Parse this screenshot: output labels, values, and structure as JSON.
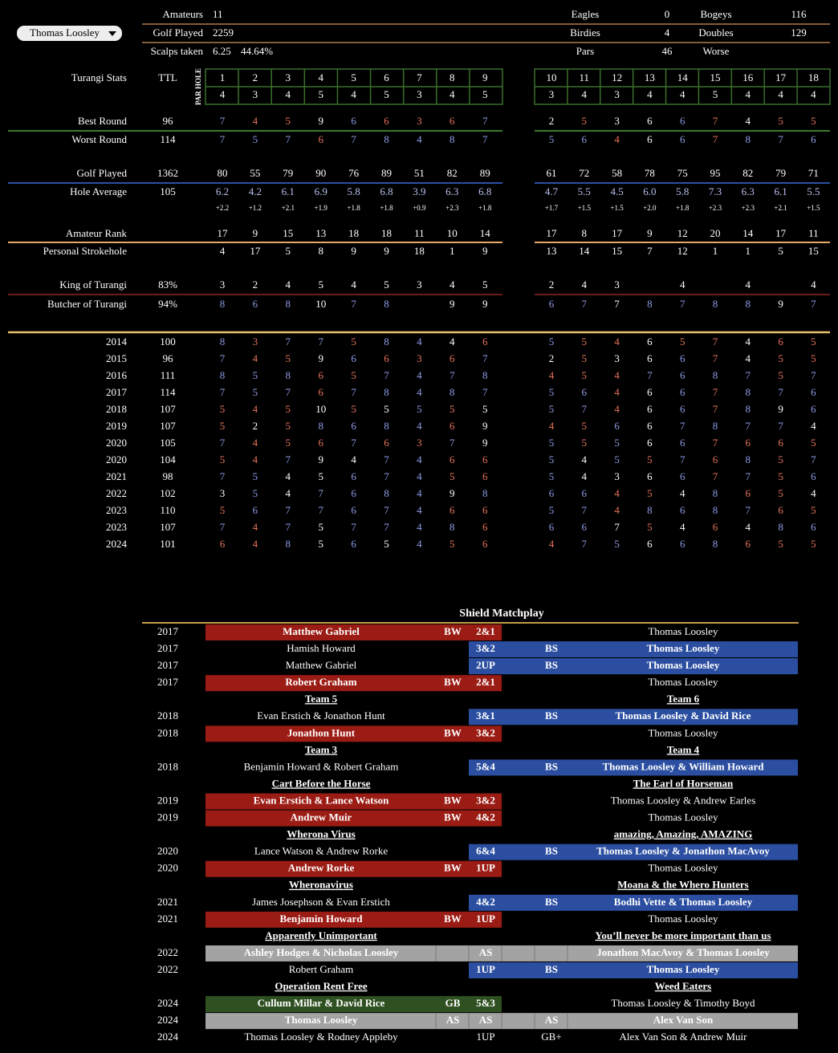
{
  "player": "Thomas Loosley",
  "summary": {
    "left": [
      {
        "label": "Amateurs",
        "values": [
          "11"
        ]
      },
      {
        "label": "Golf Played",
        "values": [
          "2259"
        ]
      },
      {
        "label": "Scalps taken",
        "values": [
          "6.25",
          "44.64%"
        ]
      }
    ],
    "right": [
      [
        "Eagles",
        "0"
      ],
      [
        "Birdies",
        "4"
      ],
      [
        "Pars",
        "46"
      ],
      [
        "Bogeys",
        "116"
      ],
      [
        "Doubles",
        "129"
      ],
      [
        "Worse"
      ]
    ]
  },
  "stats": {
    "title": "Turangi Stats",
    "total_header": "TTL",
    "par_hole_label": "PAR HOLE",
    "holes": [
      1,
      2,
      3,
      4,
      5,
      6,
      7,
      8,
      9,
      10,
      11,
      12,
      13,
      14,
      15,
      16,
      17,
      18
    ],
    "par": [
      4,
      3,
      4,
      5,
      4,
      5,
      3,
      4,
      5,
      3,
      4,
      3,
      4,
      4,
      5,
      4,
      4,
      4
    ],
    "rows": [
      {
        "label": "Best Round",
        "total": 96,
        "values": [
          7,
          4,
          5,
          9,
          6,
          6,
          3,
          6,
          7,
          2,
          5,
          3,
          6,
          6,
          7,
          4,
          5,
          5
        ]
      },
      {
        "label": "Worst Round",
        "total": 114,
        "values": [
          7,
          5,
          7,
          6,
          7,
          8,
          4,
          8,
          7,
          5,
          6,
          4,
          6,
          6,
          7,
          8,
          7,
          6
        ]
      },
      {
        "label": "Golf Played",
        "total": 1362,
        "values": [
          80,
          55,
          79,
          90,
          76,
          89,
          51,
          82,
          89,
          61,
          72,
          58,
          78,
          75,
          95,
          82,
          79,
          71
        ]
      },
      {
        "label": "Hole Average",
        "total": 105,
        "values": [
          "6.2",
          "4.2",
          "6.1",
          "6.9",
          "5.8",
          "6.8",
          "3.9",
          "6.3",
          "6.8",
          "4.7",
          "5.5",
          "4.5",
          "6.0",
          "5.8",
          "7.3",
          "6.3",
          "6.1",
          "5.5"
        ],
        "notes": [
          "+2.2",
          "+1.2",
          "+2.1",
          "+1.9",
          "+1.8",
          "+1.8",
          "+0.9",
          "+2.3",
          "+1.8",
          "+1.7",
          "+1.5",
          "+1.5",
          "+2.0",
          "+1.8",
          "+2.3",
          "+2.3",
          "+2.1",
          "+1.5"
        ]
      },
      {
        "label": "Amateur Rank",
        "values": [
          17,
          9,
          15,
          13,
          18,
          18,
          11,
          10,
          14,
          17,
          8,
          17,
          9,
          12,
          20,
          14,
          17,
          11
        ]
      },
      {
        "label": "Personal Strokehole",
        "values": [
          4,
          17,
          5,
          8,
          9,
          9,
          18,
          1,
          9,
          13,
          14,
          15,
          7,
          12,
          1,
          1,
          5,
          15
        ]
      },
      {
        "label": "King of Turangi",
        "total": "83%",
        "values": [
          3,
          2,
          4,
          5,
          4,
          5,
          3,
          4,
          5,
          2,
          4,
          3,
          null,
          4,
          null,
          4,
          null,
          4
        ]
      },
      {
        "label": "Butcher of Turangi",
        "total": "94%",
        "values": [
          8,
          6,
          8,
          10,
          7,
          8,
          null,
          9,
          9,
          6,
          7,
          7,
          8,
          7,
          8,
          8,
          9,
          7
        ]
      }
    ]
  },
  "years": [
    {
      "year": 2014,
      "total": 100,
      "values": [
        8,
        3,
        7,
        7,
        5,
        8,
        4,
        4,
        6,
        5,
        5,
        4,
        6,
        5,
        7,
        4,
        6,
        5
      ]
    },
    {
      "year": 2015,
      "total": 96,
      "values": [
        7,
        4,
        5,
        9,
        6,
        6,
        3,
        6,
        7,
        2,
        5,
        3,
        6,
        6,
        7,
        4,
        5,
        5
      ]
    },
    {
      "year": 2016,
      "total": 111,
      "values": [
        8,
        5,
        8,
        6,
        5,
        7,
        4,
        7,
        8,
        4,
        5,
        4,
        7,
        6,
        8,
        7,
        5,
        7
      ]
    },
    {
      "year": 2017,
      "total": 114,
      "values": [
        7,
        5,
        7,
        6,
        7,
        8,
        4,
        8,
        7,
        5,
        6,
        4,
        6,
        6,
        7,
        8,
        7,
        6
      ]
    },
    {
      "year": 2018,
      "total": 107,
      "values": [
        5,
        4,
        5,
        10,
        5,
        5,
        5,
        5,
        5,
        5,
        7,
        4,
        6,
        6,
        7,
        8,
        9,
        6
      ]
    },
    {
      "year": 2019,
      "total": 107,
      "values": [
        5,
        2,
        5,
        8,
        6,
        8,
        4,
        6,
        9,
        4,
        5,
        6,
        6,
        7,
        8,
        7,
        7,
        4
      ]
    },
    {
      "year": 2020,
      "total": 105,
      "values": [
        7,
        4,
        5,
        6,
        7,
        6,
        3,
        7,
        9,
        5,
        5,
        5,
        6,
        6,
        7,
        6,
        6,
        5
      ]
    },
    {
      "year": 2020,
      "total": 104,
      "values": [
        5,
        4,
        7,
        9,
        4,
        7,
        4,
        6,
        6,
        5,
        4,
        5,
        5,
        7,
        6,
        8,
        5,
        7
      ]
    },
    {
      "year": 2021,
      "total": 98,
      "values": [
        7,
        5,
        4,
        5,
        6,
        7,
        4,
        5,
        6,
        5,
        4,
        3,
        6,
        6,
        7,
        7,
        5,
        6
      ]
    },
    {
      "year": 2022,
      "total": 102,
      "values": [
        3,
        5,
        4,
        7,
        6,
        8,
        4,
        9,
        8,
        6,
        6,
        4,
        5,
        4,
        8,
        6,
        5,
        4
      ]
    },
    {
      "year": 2023,
      "total": 110,
      "values": [
        5,
        6,
        7,
        7,
        6,
        7,
        4,
        6,
        6,
        5,
        7,
        4,
        8,
        6,
        8,
        7,
        6,
        5
      ]
    },
    {
      "year": 2023,
      "total": 107,
      "values": [
        7,
        4,
        7,
        5,
        7,
        7,
        4,
        8,
        6,
        6,
        6,
        7,
        5,
        4,
        6,
        4,
        8,
        6
      ]
    },
    {
      "year": 2024,
      "total": 101,
      "values": [
        6,
        4,
        8,
        5,
        6,
        5,
        4,
        5,
        6,
        4,
        7,
        5,
        6,
        6,
        8,
        6,
        5,
        5
      ]
    }
  ],
  "matchplay": {
    "title": "Shield Matchplay",
    "rows": [
      {
        "year": 2017,
        "left": "Matthew Gabriel",
        "left_tag": "BW",
        "score": "2&1",
        "right": "Thomas Loosley",
        "result": "left"
      },
      {
        "year": 2017,
        "left": "Hamish Howard",
        "score": "3&2",
        "right_tag": "BS",
        "right": "Thomas Loosley",
        "result": "right"
      },
      {
        "year": 2017,
        "left": "Matthew Gabriel",
        "score": "2UP",
        "right_tag": "BS",
        "right": "Thomas Loosley",
        "result": "right"
      },
      {
        "year": 2017,
        "left": "Robert Graham",
        "left_tag": "BW",
        "score": "2&1",
        "right": "Thomas Loosley",
        "result": "left"
      },
      {
        "left": "Team 5",
        "right": "Team 6"
      },
      {
        "year": 2018,
        "left": "Evan Erstich & Jonathon Hunt",
        "score": "3&1",
        "right_tag": "BS",
        "right": "Thomas Loosley & David Rice",
        "result": "right"
      },
      {
        "year": 2018,
        "left": "Jonathon Hunt",
        "left_tag": "BW",
        "score": "3&2",
        "right": "Thomas Loosley",
        "result": "left"
      },
      {
        "left": "Team 3",
        "right": "Team 4"
      },
      {
        "year": 2018,
        "left": "Benjamin Howard & Robert Graham",
        "score": "5&4",
        "right_tag": "BS",
        "right": "Thomas Loosley & William Howard",
        "result": "right"
      },
      {
        "left": "Cart Before the Horse",
        "right": "The Earl of Horseman"
      },
      {
        "year": 2019,
        "left": "Evan Erstich & Lance Watson",
        "left_tag": "BW",
        "score": "3&2",
        "right": "Thomas Loosley & Andrew Earles",
        "result": "left"
      },
      {
        "year": 2019,
        "left": "Andrew Muir",
        "left_tag": "BW",
        "score": "4&2",
        "right": "Thomas Loosley",
        "result": "left"
      },
      {
        "left": "Wherona Virus",
        "right": "amazing, Amazing, AMAZING"
      },
      {
        "year": 2020,
        "left": "Lance Watson & Andrew Rorke",
        "score": "6&4",
        "right_tag": "BS",
        "right": "Thomas Loosley & Jonathon MacAvoy",
        "result": "right"
      },
      {
        "year": 2020,
        "left": "Andrew Rorke",
        "left_tag": "BW",
        "score": "1UP",
        "right": "Thomas Loosley",
        "result": "left"
      },
      {
        "left": "Wheronavirus",
        "right": "Moana & the Whero Hunters"
      },
      {
        "year": 2021,
        "left": "James Josephson & Evan Erstich",
        "score": "4&2",
        "right_tag": "BS",
        "right": "Bodhi Vette & Thomas Loosley",
        "result": "right"
      },
      {
        "year": 2021,
        "left": "Benjamin Howard",
        "left_tag": "BW",
        "score": "1UP",
        "right": "Thomas Loosley",
        "result": "left"
      },
      {
        "left": "Apparently Unimportant",
        "right": "You’ll never be more important than us"
      },
      {
        "year": 2022,
        "left": "Ashley Hodges & Nicholas Loosley",
        "score": "AS",
        "right": "Jonathon MacAvoy & Thomas Loosley",
        "result": "halved"
      },
      {
        "year": 2022,
        "left": "Robert Graham",
        "score": "1UP",
        "right_tag": "BS",
        "right": "Thomas Loosley",
        "result": "right"
      },
      {
        "left": "Operation Rent Free",
        "right": "Weed Eaters"
      },
      {
        "year": 2024,
        "left": "Cullum Millar & David Rice",
        "left_tag": "GB",
        "score": "5&3",
        "right": "Thomas Loosley & Timothy Boyd",
        "result": "green"
      },
      {
        "year": 2024,
        "left": "Thomas Loosley",
        "left_tag": "AS",
        "score": "AS",
        "right_tag": "AS",
        "right": "Alex Van Son",
        "result": "halved"
      },
      {
        "year": 2024,
        "left": "Thomas Loosley & Rodney Appleby",
        "score": "1UP",
        "right_tag": "GB+",
        "right": "Alex Van Son & Andrew Muir"
      }
    ]
  }
}
